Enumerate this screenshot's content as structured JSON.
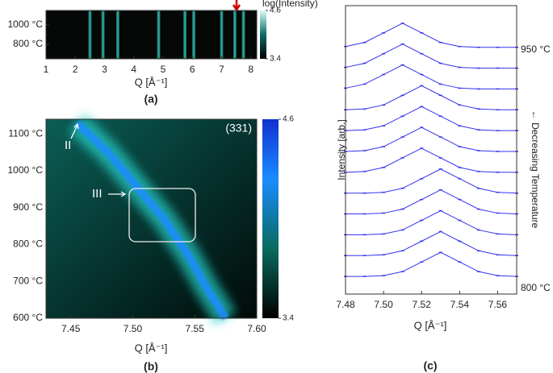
{
  "chart_data": [
    {
      "type": "heatmap",
      "panel_label": "(a)",
      "xlabel": "Q [Å⁻¹]",
      "xlim": [
        1,
        8.2
      ],
      "xticks": [
        1,
        2,
        3,
        4,
        5,
        6,
        7,
        8
      ],
      "ylim": [
        650,
        1150
      ],
      "yticks": [
        {
          "value": 800,
          "label": "800 °C"
        },
        {
          "value": 1000,
          "label": "1000 °C"
        }
      ],
      "peak_positions": [
        2.5,
        2.95,
        3.45,
        4.85,
        5.75,
        6.05,
        7.0,
        7.45,
        7.75
      ],
      "colorbar_title": "log(Intensity)",
      "clim": [
        3.4,
        4.6
      ],
      "cticks": [
        4.6,
        3.4
      ],
      "color": "#3ff0e0"
    },
    {
      "type": "heatmap_trace",
      "panel_label": "(b)",
      "xlabel": "Q [Å⁻¹]",
      "xlim": [
        7.43,
        7.6
      ],
      "xticks": [
        7.45,
        {
          "value": 7.5,
          "label": "7.50"
        },
        7.55,
        {
          "value": 7.6,
          "label": "7.60"
        }
      ],
      "ylim": [
        600,
        1140
      ],
      "yticks": [
        {
          "value": 600,
          "label": "600 °C"
        },
        {
          "value": 700,
          "label": "700 °C"
        },
        {
          "value": 800,
          "label": "800 °C"
        },
        {
          "value": 900,
          "label": "900 °C"
        },
        {
          "value": 1000,
          "label": "1000 °C"
        },
        {
          "value": 1100,
          "label": "1100 °C"
        }
      ],
      "trace": {
        "x": [
          7.455,
          7.48,
          7.505,
          7.525,
          7.545,
          7.56,
          7.575
        ],
        "y": [
          1130,
          1050,
          950,
          870,
          770,
          680,
          600
        ]
      },
      "reflection": "(331)",
      "annotations": [
        "II",
        "III"
      ],
      "clim": [
        3.4,
        4.6
      ],
      "cticks": [
        4.6,
        3.4
      ],
      "color": "#1a8cff"
    },
    {
      "type": "line",
      "panel_label": "(c)",
      "xlabel": "Q [Å⁻¹]",
      "ylabel": "Intensity [arb.]",
      "top_label": "950 °C",
      "bottom_label": "800 °C",
      "side_label": "← Decreasing Temperature",
      "xlim": [
        7.48,
        7.57
      ],
      "xticks": [
        7.48,
        {
          "value": 7.5,
          "label": "7.50"
        },
        7.52,
        7.54,
        7.56
      ],
      "ylim": [
        0,
        18
      ],
      "color": "#3333ee",
      "x": [
        7.48,
        7.49,
        7.5,
        7.51,
        7.52,
        7.53,
        7.54,
        7.55,
        7.56,
        7.57
      ],
      "series": [
        {
          "values": [
            15.45,
            15.7,
            16.3,
            16.9,
            16.3,
            15.7,
            15.45,
            15.4,
            15.4,
            15.4
          ]
        },
        {
          "values": [
            14.15,
            14.4,
            15.0,
            15.6,
            15.0,
            14.4,
            14.15,
            14.1,
            14.1,
            14.1
          ]
        },
        {
          "values": [
            12.85,
            13.1,
            13.7,
            14.3,
            13.7,
            13.1,
            12.85,
            12.8,
            12.8,
            12.8
          ]
        },
        {
          "values": [
            11.5,
            11.55,
            11.8,
            12.4,
            13.0,
            12.4,
            11.8,
            11.55,
            11.5,
            11.5
          ]
        },
        {
          "values": [
            10.2,
            10.25,
            10.5,
            11.1,
            11.7,
            11.1,
            10.5,
            10.25,
            10.2,
            10.2
          ]
        },
        {
          "values": [
            8.9,
            8.95,
            9.2,
            9.8,
            10.4,
            9.8,
            9.2,
            8.95,
            8.9,
            8.9
          ]
        },
        {
          "values": [
            7.6,
            7.65,
            7.9,
            8.5,
            9.1,
            8.5,
            7.9,
            7.65,
            7.6,
            7.6
          ]
        },
        {
          "values": [
            6.3,
            6.3,
            6.35,
            6.6,
            7.2,
            7.8,
            7.2,
            6.6,
            6.35,
            6.3
          ]
        },
        {
          "values": [
            5.0,
            5.0,
            5.05,
            5.3,
            5.9,
            6.5,
            5.9,
            5.3,
            5.05,
            5.0
          ]
        },
        {
          "values": [
            3.7,
            3.7,
            3.75,
            4.0,
            4.6,
            5.2,
            4.6,
            4.0,
            3.75,
            3.7
          ]
        },
        {
          "values": [
            2.4,
            2.4,
            2.45,
            2.7,
            3.3,
            3.9,
            3.3,
            2.7,
            2.45,
            2.4
          ]
        },
        {
          "values": [
            1.1,
            1.1,
            1.15,
            1.4,
            2.0,
            2.6,
            2.0,
            1.4,
            1.15,
            1.1
          ]
        }
      ]
    }
  ]
}
